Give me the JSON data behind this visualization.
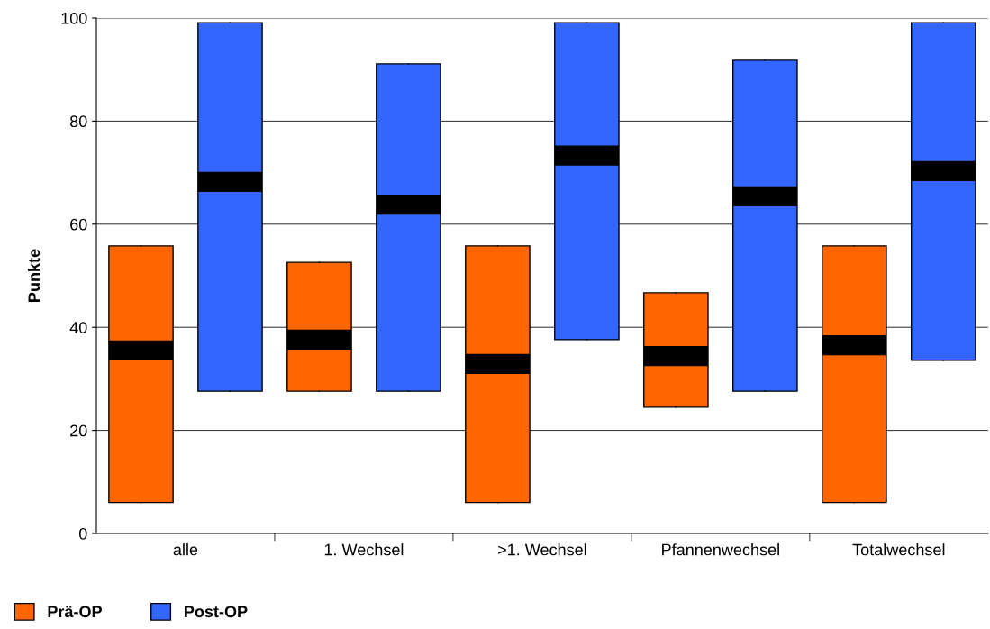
{
  "chart_data": {
    "type": "box",
    "ylabel": "Punkte",
    "categories": [
      "alle",
      "1. Wechsel",
      ">1. Wechsel",
      "Pfannenwechsel",
      "Totalwechsel"
    ],
    "series": [
      {
        "name": "Prä-OP",
        "color": "#ff6600",
        "boxes": [
          {
            "low": 6,
            "q1": 6,
            "median": 35.5,
            "q3": 55.8,
            "high": 55.8
          },
          {
            "low": 27.6,
            "q1": 27.6,
            "median": 37.6,
            "q3": 52.6,
            "high": 52.6
          },
          {
            "low": 6,
            "q1": 6,
            "median": 32.9,
            "q3": 55.8,
            "high": 55.8
          },
          {
            "low": 24.5,
            "q1": 24.5,
            "median": 34.4,
            "q3": 46.7,
            "high": 46.7
          },
          {
            "low": 6,
            "q1": 6,
            "median": 36.5,
            "q3": 55.8,
            "high": 55.8
          }
        ]
      },
      {
        "name": "Post-OP",
        "color": "#3366ff",
        "boxes": [
          {
            "low": 27.6,
            "q1": 27.6,
            "median": 68.2,
            "q3": 99.1,
            "high": 99.1
          },
          {
            "low": 27.6,
            "q1": 27.6,
            "median": 63.8,
            "q3": 91.1,
            "high": 91.1
          },
          {
            "low": 37.6,
            "q1": 37.6,
            "median": 73.3,
            "q3": 99.1,
            "high": 99.1
          },
          {
            "low": 27.6,
            "q1": 27.6,
            "median": 65.4,
            "q3": 91.8,
            "high": 91.8
          },
          {
            "low": 33.6,
            "q1": 33.6,
            "median": 70.3,
            "q3": 99.1,
            "high": 99.1
          }
        ]
      }
    ],
    "ylim": [
      0,
      100
    ],
    "yticks": [
      0,
      20,
      40,
      60,
      80,
      100
    ],
    "grid": "y",
    "legend": "bottom left"
  }
}
